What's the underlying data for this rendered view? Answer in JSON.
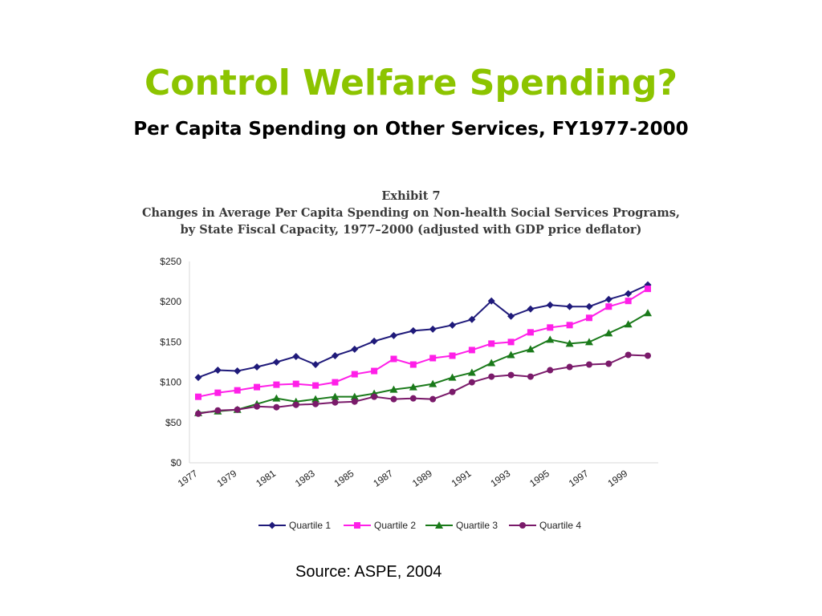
{
  "slide": {
    "title": "Control Welfare Spending?",
    "subtitle": "Per Capita Spending on Other Services, FY1977-2000",
    "source": "Source: ASPE, 2004",
    "title_color": "#8cc400"
  },
  "chart_data": {
    "type": "line",
    "title_lines": [
      "Exhibit 7",
      "Changes in Average Per Capita Spending on Non-health Social Services Programs,",
      "by State Fiscal Capacity, 1977–2000 (adjusted with GDP price deflator)"
    ],
    "x": [
      1977,
      1978,
      1979,
      1980,
      1981,
      1982,
      1983,
      1984,
      1985,
      1986,
      1987,
      1988,
      1989,
      1990,
      1991,
      1992,
      1993,
      1994,
      1995,
      1996,
      1997,
      1998,
      1999,
      2000
    ],
    "x_tick_labels": [
      "1977",
      "1979",
      "1981",
      "1983",
      "1985",
      "1987",
      "1989",
      "1991",
      "1993",
      "1995",
      "1997",
      "1999"
    ],
    "y_tick_labels": [
      "$0",
      "$50",
      "$100",
      "$150",
      "$200",
      "$250"
    ],
    "y_ticks": [
      0,
      50,
      100,
      150,
      200,
      250
    ],
    "ylim": [
      0,
      250
    ],
    "grid": false,
    "legend_position": "bottom",
    "series": [
      {
        "name": "Quartile 1",
        "color": "#1f1a7a",
        "marker": "diamond",
        "values": [
          106,
          115,
          114,
          119,
          125,
          132,
          122,
          133,
          141,
          151,
          158,
          164,
          166,
          171,
          178,
          201,
          182,
          191,
          196,
          194,
          194,
          203,
          210,
          221
        ]
      },
      {
        "name": "Quartile 2",
        "color": "#ff1fe8",
        "marker": "square",
        "values": [
          82,
          87,
          90,
          94,
          97,
          98,
          96,
          100,
          110,
          114,
          129,
          122,
          130,
          133,
          140,
          148,
          150,
          162,
          168,
          171,
          180,
          194,
          201,
          216
        ]
      },
      {
        "name": "Quartile 3",
        "color": "#1a7a1a",
        "marker": "triangle",
        "values": [
          62,
          64,
          66,
          73,
          80,
          76,
          79,
          82,
          82,
          86,
          91,
          94,
          98,
          106,
          112,
          124,
          134,
          141,
          153,
          148,
          150,
          161,
          172,
          186
        ]
      },
      {
        "name": "Quartile 4",
        "color": "#7a1a6a",
        "marker": "circle",
        "values": [
          61,
          65,
          66,
          70,
          69,
          72,
          73,
          75,
          76,
          82,
          79,
          80,
          79,
          88,
          100,
          107,
          109,
          107,
          115,
          119,
          122,
          123,
          134,
          133
        ]
      }
    ]
  }
}
